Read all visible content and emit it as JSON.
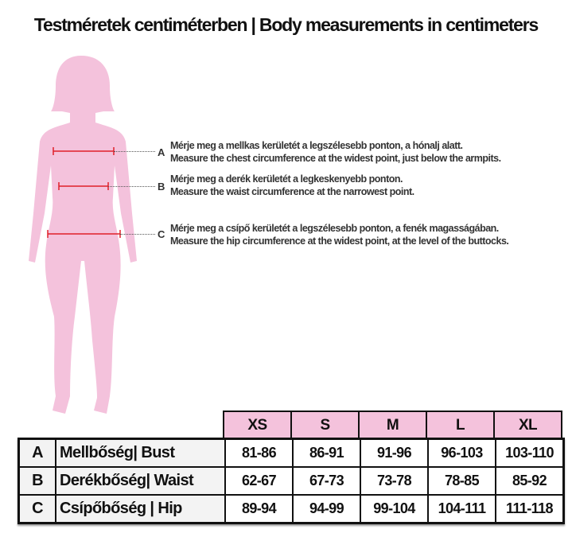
{
  "title": "Testméretek centiméterben | Body measurements in centimeters",
  "colors": {
    "silhouette": "#f4c2dc",
    "measure_line": "#e0202a",
    "header_bg": "#f4c2dc"
  },
  "annotations": [
    {
      "letter": "A",
      "hu": "Mérje meg a mellkas kerületét a legszélesebb ponton, a hónalj alatt.",
      "en": "Measure the chest circumference at the widest point, just below the armpits."
    },
    {
      "letter": "B",
      "hu": "Mérje meg a derék kerületét a legkeskenyebb ponton.",
      "en": "Measure the waist circumference at the narrowest point."
    },
    {
      "letter": "C",
      "hu": "Mérje meg a csípő kerületét a legszélesebb ponton, a fenék magasságában.",
      "en": "Measure the hip circumference at the widest point, at the level of the buttocks."
    }
  ],
  "table": {
    "sizes": [
      "XS",
      "S",
      "M",
      "L",
      "XL"
    ],
    "rows": [
      {
        "key": "A",
        "label": "Mellbőség| Bust",
        "values": [
          "81-86",
          "86-91",
          "91-96",
          "96-103",
          "103-110"
        ]
      },
      {
        "key": "B",
        "label": "Derékbőség| Waist",
        "values": [
          "62-67",
          "67-73",
          "73-78",
          "78-85",
          "85-92"
        ]
      },
      {
        "key": "C",
        "label": "Csípőbőség | Hip",
        "values": [
          "89-94",
          "94-99",
          "99-104",
          "104-111",
          "111-118"
        ]
      }
    ]
  }
}
